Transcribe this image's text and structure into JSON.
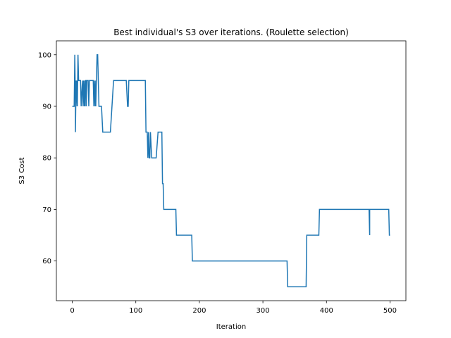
{
  "chart_data": {
    "type": "line",
    "title": "Best individual's S3 over iterations. (Roulette selection)",
    "xlabel": "Iteration",
    "ylabel": "S3 Cost",
    "xlim": [
      -25,
      525
    ],
    "ylim": [
      52.3,
      102.7
    ],
    "xticks": [
      0,
      100,
      200,
      300,
      400,
      500
    ],
    "yticks": [
      60,
      70,
      80,
      90,
      100
    ],
    "grid": false,
    "legend": "none",
    "colors": {
      "line": "#1f77b4",
      "axes": "#000000",
      "background": "#ffffff"
    },
    "series": [
      {
        "x": [
          0,
          3,
          4,
          5,
          5,
          6,
          6,
          7,
          8,
          9,
          10,
          11,
          12,
          13,
          14,
          16,
          17,
          17,
          18,
          19,
          20,
          20,
          21,
          22,
          22,
          23,
          24,
          25,
          26,
          27,
          28,
          30,
          32,
          33,
          34,
          35,
          36,
          37,
          37,
          38,
          39,
          40,
          41,
          42,
          43,
          44,
          45,
          46,
          48,
          50,
          52,
          55,
          60,
          65,
          68,
          70,
          75,
          80,
          85,
          87,
          88,
          89,
          90,
          92,
          95,
          100,
          105,
          110,
          115,
          116,
          117,
          118,
          119,
          120,
          121,
          122,
          123,
          125,
          128,
          132,
          135,
          138,
          140,
          141,
          142,
          143,
          143,
          144,
          145,
          150,
          155,
          160,
          163,
          164,
          170,
          180,
          188,
          189,
          200,
          250,
          300,
          338,
          339,
          350,
          360,
          368,
          369,
          375,
          388,
          389,
          400,
          450,
          467,
          468,
          468,
          469,
          470,
          475,
          480,
          490,
          498,
          499,
          500
        ],
        "values": [
          90,
          90,
          100,
          90,
          85,
          95,
          90,
          95,
          90,
          100,
          95,
          95,
          95,
          95,
          90,
          95,
          90,
          90,
          95,
          90,
          95,
          90,
          95,
          95,
          90,
          95,
          95,
          95,
          90,
          95,
          95,
          95,
          95,
          95,
          90,
          95,
          90,
          95,
          90,
          95,
          100,
          100,
          95,
          90,
          90,
          90,
          90,
          90,
          85,
          85,
          85,
          85,
          85,
          95,
          95,
          95,
          95,
          95,
          95,
          90,
          90,
          95,
          95,
          95,
          95,
          95,
          95,
          95,
          95,
          85,
          85,
          85,
          80,
          85,
          80,
          80,
          85,
          80,
          80,
          80,
          85,
          85,
          85,
          85,
          75,
          75,
          75,
          70,
          70,
          70,
          70,
          70,
          70,
          65,
          65,
          65,
          65,
          60,
          60,
          60,
          60,
          60,
          55,
          55,
          55,
          55,
          65,
          65,
          65,
          70,
          70,
          70,
          70,
          65,
          70,
          70,
          70,
          70,
          70,
          70,
          70,
          65,
          65
        ]
      }
    ]
  }
}
